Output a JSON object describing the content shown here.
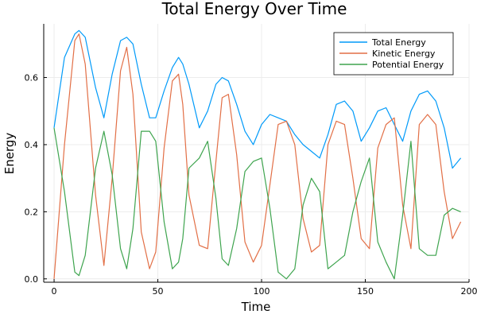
{
  "chart_data": {
    "type": "line",
    "title": "Total Energy Over Time",
    "xlabel": "Time",
    "ylabel": "Energy",
    "xlim": [
      -5,
      200
    ],
    "ylim": [
      -0.01,
      0.76
    ],
    "xticks": [
      0,
      50,
      100,
      150,
      200
    ],
    "xtick_labels": [
      "0",
      "50",
      "100",
      "150",
      "200"
    ],
    "yticks": [
      0.0,
      0.2,
      0.4,
      0.6
    ],
    "ytick_labels": [
      "0.0",
      "0.2",
      "0.4",
      "0.6"
    ],
    "grid": true,
    "legend_position": "top-right",
    "x": [
      0,
      5,
      10,
      12,
      15,
      20,
      24,
      28,
      32,
      35,
      38,
      42,
      46,
      49,
      53,
      57,
      60,
      62,
      65,
      70,
      74,
      78,
      81,
      84,
      88,
      92,
      96,
      100,
      104,
      108,
      112,
      116,
      120,
      124,
      128,
      132,
      136,
      140,
      144,
      148,
      152,
      156,
      160,
      164,
      168,
      172,
      176,
      180,
      184,
      188,
      192,
      196
    ],
    "series": [
      {
        "name": "Total Energy",
        "color": "#009AF9",
        "values": [
          0.45,
          0.66,
          0.73,
          0.74,
          0.72,
          0.57,
          0.48,
          0.61,
          0.71,
          0.72,
          0.7,
          0.58,
          0.48,
          0.48,
          0.56,
          0.63,
          0.66,
          0.64,
          0.58,
          0.45,
          0.5,
          0.58,
          0.6,
          0.59,
          0.52,
          0.44,
          0.4,
          0.46,
          0.49,
          0.48,
          0.47,
          0.43,
          0.4,
          0.38,
          0.36,
          0.43,
          0.52,
          0.53,
          0.5,
          0.41,
          0.45,
          0.5,
          0.51,
          0.46,
          0.41,
          0.5,
          0.55,
          0.56,
          0.53,
          0.45,
          0.33,
          0.36
        ]
      },
      {
        "name": "Kinetic Energy",
        "color": "#E26F46",
        "values": [
          0.0,
          0.4,
          0.71,
          0.73,
          0.64,
          0.25,
          0.04,
          0.3,
          0.62,
          0.69,
          0.55,
          0.14,
          0.03,
          0.08,
          0.39,
          0.59,
          0.61,
          0.52,
          0.25,
          0.1,
          0.09,
          0.35,
          0.54,
          0.55,
          0.37,
          0.11,
          0.05,
          0.1,
          0.28,
          0.46,
          0.47,
          0.4,
          0.18,
          0.08,
          0.1,
          0.4,
          0.47,
          0.46,
          0.3,
          0.12,
          0.09,
          0.39,
          0.46,
          0.48,
          0.22,
          0.09,
          0.46,
          0.49,
          0.46,
          0.26,
          0.12,
          0.17
        ]
      },
      {
        "name": "Potential Energy",
        "color": "#3EA44E",
        "values": [
          0.45,
          0.26,
          0.02,
          0.01,
          0.07,
          0.33,
          0.44,
          0.31,
          0.09,
          0.03,
          0.15,
          0.44,
          0.44,
          0.41,
          0.17,
          0.03,
          0.05,
          0.12,
          0.33,
          0.36,
          0.41,
          0.24,
          0.06,
          0.04,
          0.15,
          0.32,
          0.35,
          0.36,
          0.21,
          0.02,
          0.0,
          0.03,
          0.22,
          0.3,
          0.26,
          0.03,
          0.05,
          0.07,
          0.2,
          0.29,
          0.36,
          0.11,
          0.05,
          0.0,
          0.19,
          0.41,
          0.09,
          0.07,
          0.07,
          0.19,
          0.21,
          0.2
        ]
      }
    ]
  }
}
